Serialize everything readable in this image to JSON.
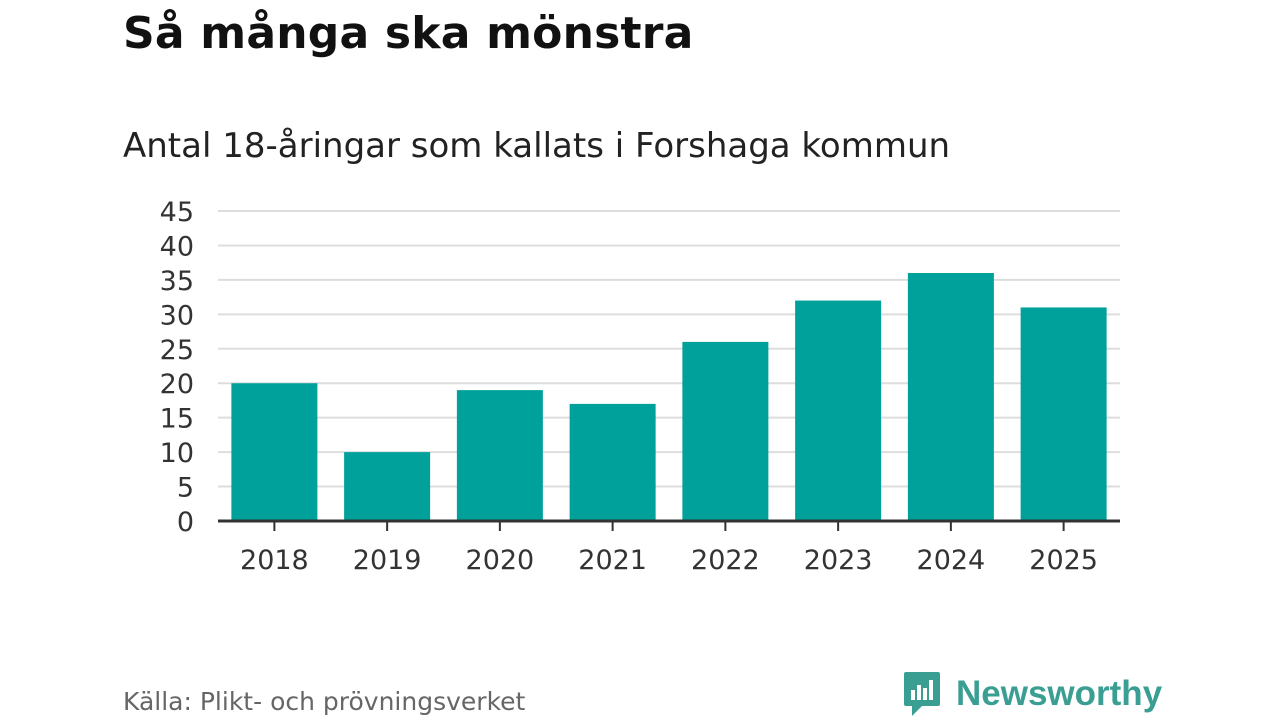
{
  "title": "Så många ska mönstra",
  "subtitle": "Antal 18-åringar som kallats i Forshaga kommun",
  "source": "Källa: Plikt- och prövningsverket",
  "logo": {
    "text": "Newsworthy",
    "icon": "newsworthy-chart-icon"
  },
  "colors": {
    "bar": "#00a19a",
    "logo": "#3a9e93",
    "grid": "#dddddd",
    "axis": "#333333"
  },
  "chart_data": {
    "type": "bar",
    "title": "Så många ska mönstra",
    "subtitle": "Antal 18-åringar som kallats i Forshaga kommun",
    "categories": [
      "2018",
      "2019",
      "2020",
      "2021",
      "2022",
      "2023",
      "2024",
      "2025"
    ],
    "values": [
      20,
      10,
      19,
      17,
      26,
      32,
      36,
      31
    ],
    "xlabel": "",
    "ylabel": "",
    "ylim": [
      0,
      45
    ],
    "yticks": [
      0,
      5,
      10,
      15,
      20,
      25,
      30,
      35,
      40,
      45
    ],
    "grid": true,
    "legend": "none"
  }
}
